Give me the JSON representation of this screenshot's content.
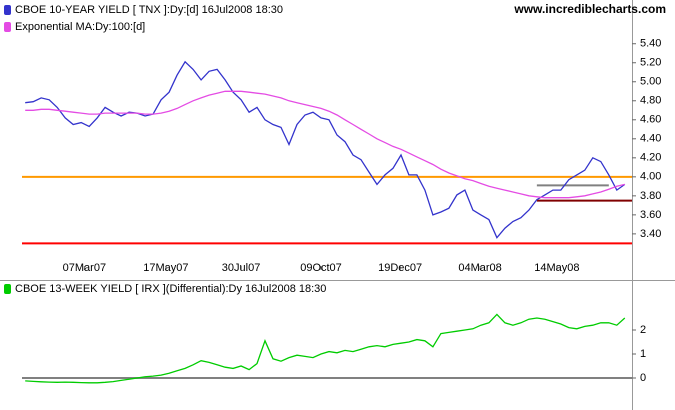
{
  "chart_data": [
    {
      "type": "line",
      "watermark": "www.incrediblecharts.com",
      "xlim": [
        -0.4,
        75.9
      ],
      "xticks": [
        {
          "value": 7.4,
          "label": "07Mar07"
        },
        {
          "value": 17.6,
          "label": "17May07"
        },
        {
          "value": 27,
          "label": "30Jul07"
        },
        {
          "value": 37,
          "label": "09Oct07"
        },
        {
          "value": 46.9,
          "label": "19Dec07"
        },
        {
          "value": 56.9,
          "label": "04Mar08"
        },
        {
          "value": 66.5,
          "label": "14May08"
        }
      ],
      "ylim": [
        3.02,
        5.86
      ],
      "yticks": [
        {
          "value": 3.4,
          "label": "3.40"
        },
        {
          "value": 3.6,
          "label": "3.60"
        },
        {
          "value": 3.8,
          "label": "3.80"
        },
        {
          "value": 4,
          "label": "4.00"
        },
        {
          "value": 4.2,
          "label": "4.20"
        },
        {
          "value": 4.4,
          "label": "4.40"
        },
        {
          "value": 4.6,
          "label": "4.60"
        },
        {
          "value": 4.8,
          "label": "4.80"
        },
        {
          "value": 5,
          "label": "5.00"
        },
        {
          "value": 5.2,
          "label": "5.20"
        },
        {
          "value": 5.4,
          "label": "5.40"
        }
      ],
      "hlines": [
        {
          "value": 4.0,
          "color": "#ff9900"
        },
        {
          "value": 3.3,
          "color": "#ff0000"
        },
        {
          "value": 3.75,
          "color": "#800000",
          "xstart": 64
        },
        {
          "value": 3.91,
          "color": "#808080",
          "xstart": 64,
          "xend": 73
        }
      ],
      "series": [
        {
          "name": "CBOE 10-YEAR YIELD [ TNX ]:Dy:[d]  16Jul2008 18:30",
          "color": "#3333cc",
          "values": [
            4.78,
            4.79,
            4.83,
            4.81,
            4.73,
            4.62,
            4.55,
            4.57,
            4.53,
            4.62,
            4.73,
            4.68,
            4.64,
            4.68,
            4.67,
            4.64,
            4.66,
            4.81,
            4.89,
            5.07,
            5.21,
            5.13,
            5.02,
            5.11,
            5.13,
            5.02,
            4.89,
            4.81,
            4.68,
            4.73,
            4.6,
            4.55,
            4.52,
            4.34,
            4.55,
            4.65,
            4.68,
            4.62,
            4.6,
            4.44,
            4.37,
            4.23,
            4.18,
            4.05,
            3.92,
            4.02,
            4.09,
            4.23,
            4.02,
            4.02,
            3.86,
            3.6,
            3.63,
            3.67,
            3.81,
            3.86,
            3.65,
            3.6,
            3.55,
            3.36,
            3.46,
            3.53,
            3.57,
            3.65,
            3.76,
            3.81,
            3.86,
            3.86,
            3.97,
            4.02,
            4.07,
            4.2,
            4.16,
            4.02,
            3.86,
            3.92
          ]
        },
        {
          "name": "Exponential MA:Dy:100:[d]",
          "color": "#e44ce4",
          "values": [
            4.7,
            4.7,
            4.71,
            4.71,
            4.7,
            4.69,
            4.68,
            4.67,
            4.66,
            4.66,
            4.67,
            4.67,
            4.67,
            4.67,
            4.67,
            4.66,
            4.66,
            4.67,
            4.69,
            4.72,
            4.76,
            4.8,
            4.83,
            4.86,
            4.88,
            4.9,
            4.9,
            4.9,
            4.89,
            4.88,
            4.87,
            4.85,
            4.83,
            4.8,
            4.78,
            4.76,
            4.74,
            4.72,
            4.69,
            4.65,
            4.6,
            4.55,
            4.5,
            4.45,
            4.4,
            4.36,
            4.32,
            4.29,
            4.25,
            4.21,
            4.17,
            4.13,
            4.08,
            4.04,
            4.01,
            3.98,
            3.96,
            3.93,
            3.9,
            3.88,
            3.86,
            3.84,
            3.82,
            3.8,
            3.79,
            3.78,
            3.78,
            3.78,
            3.78,
            3.79,
            3.8,
            3.82,
            3.84,
            3.87,
            3.9,
            3.92
          ]
        }
      ]
    },
    {
      "type": "line",
      "xlim": [
        -0.4,
        75.9
      ],
      "ylim": [
        -1.125,
        4
      ],
      "yticks": [
        0,
        1,
        2
      ],
      "hlines": [
        {
          "value": 0,
          "color": "#808080"
        }
      ],
      "series": [
        {
          "name": "CBOE 13-WEEK YIELD [ IRX ](Differential):Dy  16Jul2008 18:30",
          "color": "#00cc00",
          "values": [
            -0.12,
            -0.14,
            -0.16,
            -0.17,
            -0.18,
            -0.17,
            -0.18,
            -0.19,
            -0.2,
            -0.2,
            -0.18,
            -0.15,
            -0.1,
            -0.05,
            0.0,
            0.05,
            0.08,
            0.12,
            0.2,
            0.3,
            0.4,
            0.55,
            0.72,
            0.65,
            0.55,
            0.45,
            0.4,
            0.5,
            0.35,
            0.6,
            1.55,
            0.8,
            0.7,
            0.85,
            0.95,
            0.9,
            0.85,
            1.0,
            1.1,
            1.05,
            1.15,
            1.1,
            1.2,
            1.3,
            1.35,
            1.3,
            1.4,
            1.45,
            1.5,
            1.6,
            1.55,
            1.3,
            1.85,
            1.9,
            1.95,
            2.0,
            2.05,
            2.2,
            2.3,
            2.65,
            2.3,
            2.2,
            2.3,
            2.45,
            2.5,
            2.45,
            2.35,
            2.25,
            2.1,
            2.05,
            2.15,
            2.2,
            2.3,
            2.3,
            2.2,
            2.5
          ]
        }
      ]
    }
  ]
}
